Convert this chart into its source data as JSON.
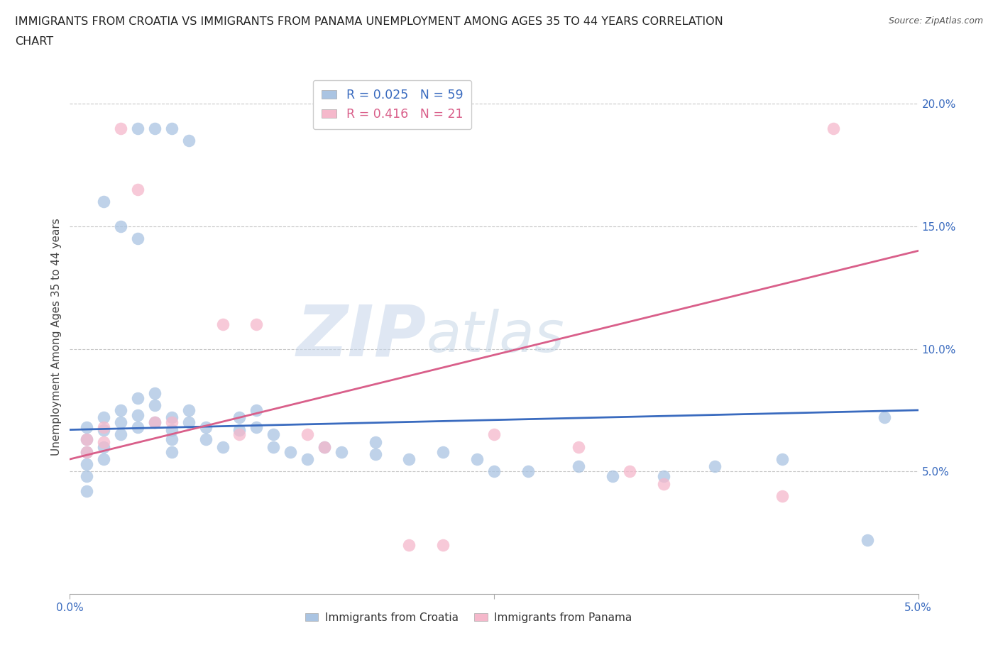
{
  "title_line1": "IMMIGRANTS FROM CROATIA VS IMMIGRANTS FROM PANAMA UNEMPLOYMENT AMONG AGES 35 TO 44 YEARS CORRELATION",
  "title_line2": "CHART",
  "source": "Source: ZipAtlas.com",
  "ylabel": "Unemployment Among Ages 35 to 44 years",
  "xlim": [
    0.0,
    0.05
  ],
  "ylim": [
    0.0,
    0.21
  ],
  "yticks": [
    0.05,
    0.1,
    0.15,
    0.2
  ],
  "ytick_labels": [
    "5.0%",
    "10.0%",
    "15.0%",
    "20.0%"
  ],
  "xticks": [
    0.0,
    0.025,
    0.05
  ],
  "xtick_labels": [
    "0.0%",
    "",
    "5.0%"
  ],
  "croatia_color": "#aac4e2",
  "panama_color": "#f5b8cb",
  "croatia_line_color": "#3a6bbf",
  "panama_line_color": "#d95f8a",
  "tick_label_color": "#3a6bbf",
  "R_croatia": 0.025,
  "N_croatia": 59,
  "R_panama": 0.416,
  "N_panama": 21,
  "croatia_x": [
    0.004,
    0.005,
    0.006,
    0.007,
    0.002,
    0.003,
    0.004,
    0.001,
    0.001,
    0.001,
    0.001,
    0.001,
    0.001,
    0.002,
    0.002,
    0.002,
    0.002,
    0.003,
    0.003,
    0.003,
    0.004,
    0.004,
    0.004,
    0.005,
    0.005,
    0.005,
    0.006,
    0.006,
    0.006,
    0.006,
    0.007,
    0.007,
    0.008,
    0.008,
    0.009,
    0.01,
    0.01,
    0.011,
    0.011,
    0.012,
    0.012,
    0.013,
    0.014,
    0.015,
    0.016,
    0.018,
    0.018,
    0.02,
    0.022,
    0.024,
    0.025,
    0.027,
    0.03,
    0.032,
    0.035,
    0.038,
    0.042,
    0.047,
    0.048
  ],
  "croatia_y": [
    0.19,
    0.19,
    0.19,
    0.185,
    0.16,
    0.15,
    0.145,
    0.068,
    0.063,
    0.058,
    0.053,
    0.048,
    0.042,
    0.072,
    0.067,
    0.06,
    0.055,
    0.075,
    0.07,
    0.065,
    0.08,
    0.073,
    0.068,
    0.082,
    0.077,
    0.07,
    0.072,
    0.067,
    0.063,
    0.058,
    0.075,
    0.07,
    0.068,
    0.063,
    0.06,
    0.072,
    0.067,
    0.075,
    0.068,
    0.065,
    0.06,
    0.058,
    0.055,
    0.06,
    0.058,
    0.062,
    0.057,
    0.055,
    0.058,
    0.055,
    0.05,
    0.05,
    0.052,
    0.048,
    0.048,
    0.052,
    0.055,
    0.022,
    0.072
  ],
  "panama_x": [
    0.001,
    0.001,
    0.002,
    0.002,
    0.003,
    0.004,
    0.005,
    0.006,
    0.009,
    0.01,
    0.011,
    0.014,
    0.015,
    0.02,
    0.022,
    0.025,
    0.03,
    0.033,
    0.035,
    0.042,
    0.045
  ],
  "panama_y": [
    0.063,
    0.058,
    0.068,
    0.062,
    0.19,
    0.165,
    0.07,
    0.07,
    0.11,
    0.065,
    0.11,
    0.065,
    0.06,
    0.02,
    0.02,
    0.065,
    0.06,
    0.05,
    0.045,
    0.04,
    0.19
  ],
  "watermark_zip": "ZIP",
  "watermark_atlas": "atlas",
  "background_color": "#ffffff",
  "grid_color": "#c8c8c8"
}
